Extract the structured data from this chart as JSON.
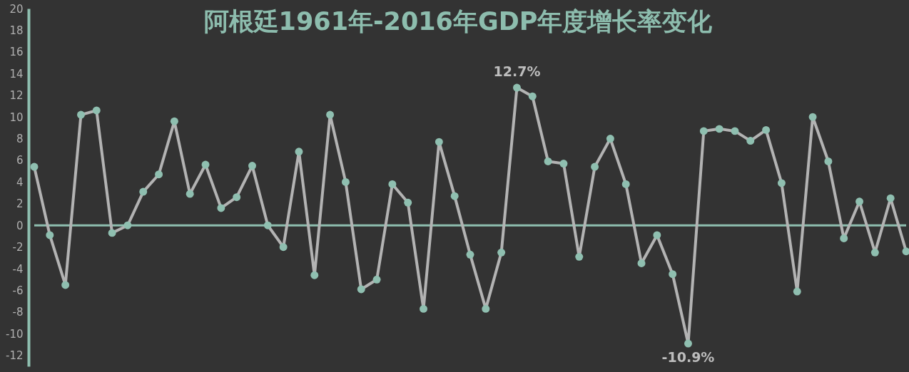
{
  "chart_data": {
    "type": "line",
    "title": "阿根廷1961年-2016年GDP年度增长率变化",
    "categories": [
      null,
      null,
      null,
      null,
      null,
      null,
      null,
      null,
      null,
      null,
      null,
      null,
      null,
      null,
      null,
      null,
      null,
      null,
      null,
      null,
      null,
      null,
      null,
      null,
      null,
      null,
      null,
      null,
      null,
      null,
      null,
      null,
      null,
      null,
      null,
      null,
      null,
      null,
      null,
      null,
      null,
      null,
      null,
      null,
      null,
      null,
      null,
      null,
      null,
      null,
      null,
      null,
      null,
      null,
      null,
      null,
      null
    ],
    "series": [
      {
        "color": "#b3b3b3",
        "values": [
          5.4,
          -0.9,
          -5.5,
          10.2,
          10.6,
          -0.7,
          0.0,
          3.1,
          4.7,
          9.6,
          2.9,
          5.6,
          1.6,
          2.6,
          5.5,
          0.0,
          -2.0,
          6.8,
          -4.6,
          10.2,
          4.0,
          -5.9,
          -5.0,
          3.8,
          2.1,
          -7.7,
          7.7,
          2.7,
          -2.7,
          -7.7,
          -2.5,
          12.7,
          11.9,
          5.9,
          5.7,
          -2.9,
          5.4,
          8.0,
          3.8,
          -3.5,
          -0.9,
          -4.5,
          -10.9,
          8.7,
          8.9,
          8.7,
          7.8,
          8.8,
          3.9,
          -6.1,
          10.0,
          5.9,
          -1.2,
          2.2,
          -2.5,
          2.5,
          -2.4
        ]
      }
    ],
    "ylim": [
      -13,
      20
    ],
    "yticks": [
      -12,
      -10,
      -8,
      -6,
      -4,
      -2,
      0,
      2,
      4,
      6,
      8,
      10,
      12,
      14,
      16,
      18,
      20
    ],
    "tick_labels": "y",
    "grid": false,
    "marker": "circle",
    "line_style": "solid",
    "ref_lines": [
      {
        "axis": "y",
        "value": 0,
        "color": "#8fbfb0"
      }
    ],
    "annotations": [
      {
        "text": "12.7%",
        "y": 12.7
      },
      {
        "text": "-10.9%",
        "y": -10.9
      }
    ]
  }
}
